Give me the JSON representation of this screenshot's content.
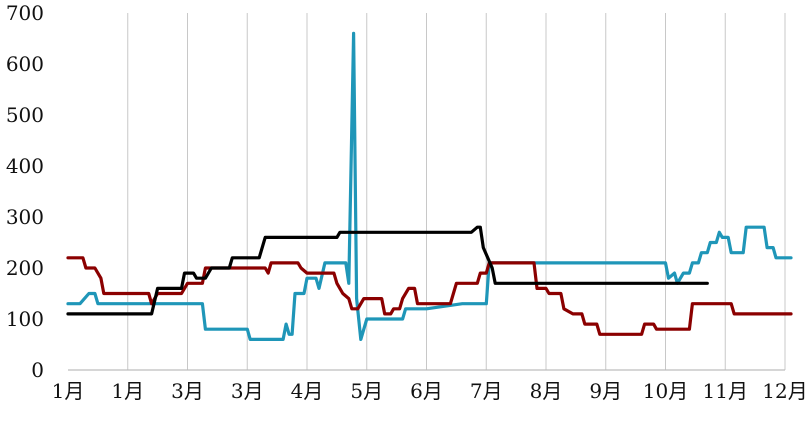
{
  "chart_data": {
    "type": "line",
    "title": "",
    "xlabel": "",
    "ylabel": "",
    "ylim": [
      0,
      700
    ],
    "yticks": [
      0,
      100,
      200,
      300,
      400,
      500,
      600,
      700
    ],
    "x_tick_labels": [
      "1月",
      "1月",
      "3月",
      "3月",
      "4月",
      "5月",
      "6月",
      "7月",
      "8月",
      "9月",
      "10月",
      "11月",
      "12月"
    ],
    "grid": "vertical",
    "legend": "none",
    "series": [
      {
        "color": "#1f96b8",
        "points": [
          [
            0,
            130
          ],
          [
            0.2,
            130
          ],
          [
            0.35,
            150
          ],
          [
            0.45,
            150
          ],
          [
            0.5,
            130
          ],
          [
            1.8,
            130
          ],
          [
            2.25,
            130
          ],
          [
            2.3,
            80
          ],
          [
            3,
            80
          ],
          [
            3.05,
            60
          ],
          [
            3.6,
            60
          ],
          [
            3.65,
            90
          ],
          [
            3.7,
            70
          ],
          [
            3.75,
            70
          ],
          [
            3.8,
            150
          ],
          [
            3.95,
            150
          ],
          [
            4.0,
            180
          ],
          [
            4.15,
            180
          ],
          [
            4.2,
            160
          ],
          [
            4.3,
            210
          ],
          [
            4.65,
            210
          ],
          [
            4.7,
            170
          ],
          [
            4.78,
            660
          ],
          [
            4.83,
            140
          ],
          [
            4.9,
            60
          ],
          [
            5.0,
            100
          ],
          [
            5.6,
            100
          ],
          [
            5.65,
            120
          ],
          [
            6.0,
            120
          ],
          [
            6.6,
            130
          ],
          [
            7.0,
            130
          ],
          [
            7.05,
            210
          ],
          [
            10.0,
            210
          ],
          [
            10.05,
            180
          ],
          [
            10.15,
            190
          ],
          [
            10.2,
            170
          ],
          [
            10.3,
            190
          ],
          [
            10.4,
            190
          ],
          [
            10.45,
            210
          ],
          [
            10.55,
            210
          ],
          [
            10.6,
            230
          ],
          [
            10.7,
            230
          ],
          [
            10.75,
            250
          ],
          [
            10.85,
            250
          ],
          [
            10.9,
            270
          ],
          [
            10.95,
            260
          ],
          [
            11.05,
            260
          ],
          [
            11.1,
            230
          ],
          [
            11.3,
            230
          ],
          [
            11.35,
            280
          ],
          [
            11.65,
            280
          ],
          [
            11.7,
            240
          ],
          [
            11.8,
            240
          ],
          [
            11.85,
            220
          ],
          [
            12.1,
            220
          ]
        ]
      },
      {
        "color": "#8b0000",
        "points": [
          [
            0,
            220
          ],
          [
            0.25,
            220
          ],
          [
            0.3,
            200
          ],
          [
            0.45,
            200
          ],
          [
            0.55,
            180
          ],
          [
            0.6,
            150
          ],
          [
            1.35,
            150
          ],
          [
            1.4,
            130
          ],
          [
            1.5,
            150
          ],
          [
            1.9,
            150
          ],
          [
            2.0,
            170
          ],
          [
            2.25,
            170
          ],
          [
            2.3,
            200
          ],
          [
            3.3,
            200
          ],
          [
            3.35,
            190
          ],
          [
            3.4,
            210
          ],
          [
            3.85,
            210
          ],
          [
            3.9,
            200
          ],
          [
            4.0,
            190
          ],
          [
            4.45,
            190
          ],
          [
            4.5,
            170
          ],
          [
            4.6,
            150
          ],
          [
            4.7,
            140
          ],
          [
            4.75,
            120
          ],
          [
            4.85,
            120
          ],
          [
            4.95,
            140
          ],
          [
            5.25,
            140
          ],
          [
            5.3,
            110
          ],
          [
            5.4,
            110
          ],
          [
            5.45,
            120
          ],
          [
            5.55,
            120
          ],
          [
            5.6,
            140
          ],
          [
            5.7,
            160
          ],
          [
            5.8,
            160
          ],
          [
            5.85,
            130
          ],
          [
            6.4,
            130
          ],
          [
            6.45,
            150
          ],
          [
            6.5,
            170
          ],
          [
            6.85,
            170
          ],
          [
            6.9,
            190
          ],
          [
            7.0,
            190
          ],
          [
            7.05,
            210
          ],
          [
            7.8,
            210
          ],
          [
            7.85,
            160
          ],
          [
            8.0,
            160
          ],
          [
            8.05,
            150
          ],
          [
            8.25,
            150
          ],
          [
            8.3,
            120
          ],
          [
            8.45,
            110
          ],
          [
            8.6,
            110
          ],
          [
            8.65,
            90
          ],
          [
            8.85,
            90
          ],
          [
            8.9,
            70
          ],
          [
            9.6,
            70
          ],
          [
            9.65,
            90
          ],
          [
            9.8,
            90
          ],
          [
            9.85,
            80
          ],
          [
            10.4,
            80
          ],
          [
            10.45,
            130
          ],
          [
            11.1,
            130
          ],
          [
            11.15,
            110
          ],
          [
            12.1,
            110
          ]
        ]
      },
      {
        "color": "#000000",
        "points": [
          [
            0,
            110
          ],
          [
            1.4,
            110
          ],
          [
            1.5,
            160
          ],
          [
            1.9,
            160
          ],
          [
            1.95,
            190
          ],
          [
            2.1,
            190
          ],
          [
            2.15,
            180
          ],
          [
            2.3,
            180
          ],
          [
            2.4,
            200
          ],
          [
            2.7,
            200
          ],
          [
            2.75,
            220
          ],
          [
            3.2,
            220
          ],
          [
            3.3,
            260
          ],
          [
            4.5,
            260
          ],
          [
            4.55,
            270
          ],
          [
            6.75,
            270
          ],
          [
            6.85,
            280
          ],
          [
            6.9,
            280
          ],
          [
            6.95,
            240
          ],
          [
            7.1,
            200
          ],
          [
            7.15,
            170
          ],
          [
            10.7,
            170
          ]
        ]
      }
    ]
  }
}
